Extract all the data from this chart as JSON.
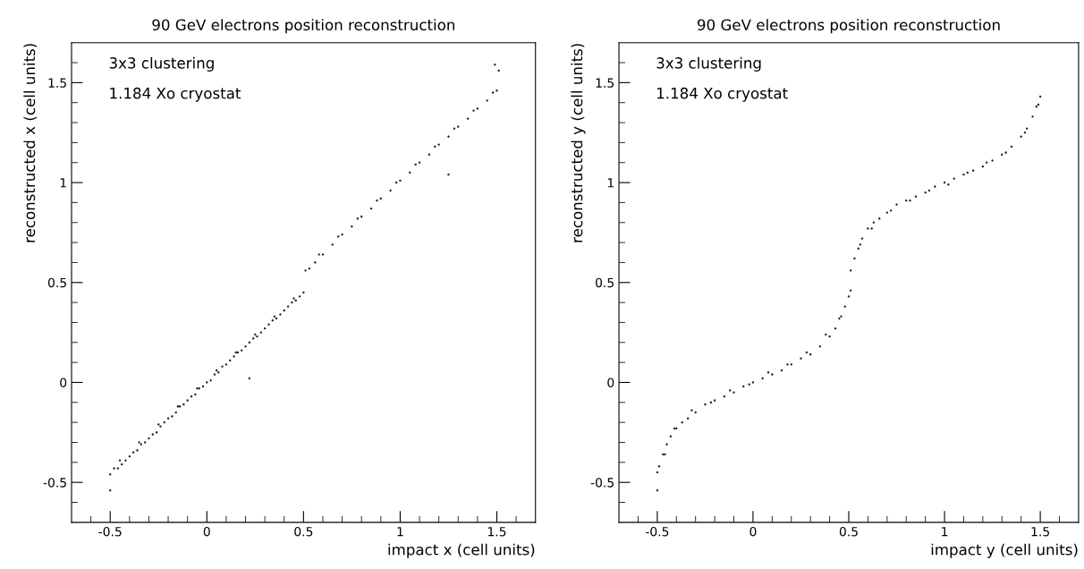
{
  "chart_data": [
    {
      "type": "scatter",
      "title": "90 GeV electrons position reconstruction",
      "xlabel": "impact x (cell units)",
      "ylabel": "reconstructed x (cell units)",
      "annotations": [
        "3x3 clustering",
        "1.184 Xo cryostat"
      ],
      "marker": "circle",
      "xlim": [
        -0.7,
        1.7
      ],
      "ylim": [
        -0.7,
        1.7
      ],
      "xticks": [
        {
          "value": -0.6,
          "label": null
        },
        -0.5,
        {
          "value": -0.4,
          "label": null
        },
        {
          "value": -0.3,
          "label": null
        },
        {
          "value": -0.2,
          "label": null
        },
        {
          "value": -0.1,
          "label": null
        },
        0,
        {
          "value": 0.1,
          "label": null
        },
        {
          "value": 0.2,
          "label": null
        },
        {
          "value": 0.3,
          "label": null
        },
        {
          "value": 0.4,
          "label": null
        },
        0.5,
        {
          "value": 0.6,
          "label": null
        },
        {
          "value": 0.7,
          "label": null
        },
        {
          "value": 0.8,
          "label": null
        },
        {
          "value": 0.9,
          "label": null
        },
        1,
        {
          "value": 1.1,
          "label": null
        },
        {
          "value": 1.2,
          "label": null
        },
        {
          "value": 1.3,
          "label": null
        },
        {
          "value": 1.4,
          "label": null
        },
        1.5,
        {
          "value": 1.6,
          "label": null
        }
      ],
      "yticks": [
        {
          "value": -0.6,
          "label": null
        },
        -0.5,
        {
          "value": -0.4,
          "label": null
        },
        {
          "value": -0.3,
          "label": null
        },
        {
          "value": -0.2,
          "label": null
        },
        {
          "value": -0.1,
          "label": null
        },
        0,
        {
          "value": 0.1,
          "label": null
        },
        {
          "value": 0.2,
          "label": null
        },
        {
          "value": 0.3,
          "label": null
        },
        {
          "value": 0.4,
          "label": null
        },
        0.5,
        {
          "value": 0.6,
          "label": null
        },
        {
          "value": 0.7,
          "label": null
        },
        {
          "value": 0.8,
          "label": null
        },
        {
          "value": 0.9,
          "label": null
        },
        1,
        {
          "value": 1.1,
          "label": null
        },
        {
          "value": 1.2,
          "label": null
        },
        {
          "value": 1.3,
          "label": null
        },
        {
          "value": 1.4,
          "label": null
        },
        1.5,
        {
          "value": 1.6,
          "label": null
        }
      ],
      "series": [
        {
          "color": "#222222",
          "x": [
            -0.5,
            -0.48,
            -0.46,
            -0.44,
            -0.42,
            -0.4,
            -0.38,
            -0.36,
            -0.34,
            -0.32,
            -0.3,
            -0.28,
            -0.26,
            -0.24,
            -0.22,
            -0.2,
            -0.18,
            -0.16,
            -0.14,
            -0.12,
            -0.1,
            -0.08,
            -0.06,
            -0.04,
            -0.02,
            0,
            0.02,
            0.04,
            0.06,
            0.08,
            0.1,
            0.12,
            0.14,
            0.16,
            0.18,
            0.2,
            0.22,
            0.24,
            0.26,
            0.28,
            0.3,
            0.32,
            0.34,
            0.36,
            0.38,
            0.4,
            0.42,
            0.44,
            0.46,
            0.48,
            0.5,
            -0.45,
            -0.35,
            -0.25,
            -0.15,
            -0.05,
            0.05,
            0.15,
            0.25,
            0.35,
            0.45,
            0.51,
            0.53,
            0.56,
            0.6,
            0.65,
            0.7,
            0.75,
            0.8,
            0.85,
            0.9,
            0.95,
            1.0,
            1.05,
            1.1,
            1.15,
            1.2,
            1.25,
            1.3,
            1.35,
            1.4,
            1.45,
            1.5,
            0.58,
            0.68,
            0.78,
            0.88,
            0.98,
            1.08,
            1.18,
            1.28,
            1.38,
            1.48,
            -0.5,
            0.22,
            1.25,
            1.49,
            1.51
          ],
          "values": [
            -0.46,
            -0.43,
            -0.43,
            -0.41,
            -0.39,
            -0.37,
            -0.35,
            -0.34,
            -0.31,
            -0.3,
            -0.28,
            -0.26,
            -0.25,
            -0.22,
            -0.2,
            -0.18,
            -0.17,
            -0.15,
            -0.12,
            -0.11,
            -0.09,
            -0.07,
            -0.06,
            -0.03,
            -0.02,
            0,
            0.01,
            0.04,
            0.05,
            0.08,
            0.09,
            0.11,
            0.13,
            0.15,
            0.16,
            0.18,
            0.2,
            0.22,
            0.23,
            0.25,
            0.27,
            0.29,
            0.31,
            0.32,
            0.34,
            0.36,
            0.38,
            0.4,
            0.41,
            0.43,
            0.45,
            -0.39,
            -0.3,
            -0.21,
            -0.12,
            -0.03,
            0.06,
            0.15,
            0.24,
            0.33,
            0.42,
            0.56,
            0.57,
            0.6,
            0.64,
            0.69,
            0.74,
            0.78,
            0.83,
            0.87,
            0.92,
            0.96,
            1.01,
            1.05,
            1.1,
            1.14,
            1.19,
            1.23,
            1.28,
            1.32,
            1.37,
            1.41,
            1.46,
            0.64,
            0.73,
            0.82,
            0.91,
            1.0,
            1.09,
            1.18,
            1.27,
            1.36,
            1.45,
            -0.54,
            0.02,
            1.04,
            1.59,
            1.56
          ]
        }
      ]
    },
    {
      "type": "scatter",
      "title": "90 GeV electrons position reconstruction",
      "xlabel": "impact y (cell units)",
      "ylabel": "reconstructed y (cell units)",
      "annotations": [
        "3x3 clustering",
        "1.184 Xo cryostat"
      ],
      "marker": "circle",
      "xlim": [
        -0.7,
        1.7
      ],
      "ylim": [
        -0.7,
        1.7
      ],
      "xticks": [
        {
          "value": -0.6,
          "label": null
        },
        -0.5,
        {
          "value": -0.4,
          "label": null
        },
        {
          "value": -0.3,
          "label": null
        },
        {
          "value": -0.2,
          "label": null
        },
        {
          "value": -0.1,
          "label": null
        },
        0,
        {
          "value": 0.1,
          "label": null
        },
        {
          "value": 0.2,
          "label": null
        },
        {
          "value": 0.3,
          "label": null
        },
        {
          "value": 0.4,
          "label": null
        },
        0.5,
        {
          "value": 0.6,
          "label": null
        },
        {
          "value": 0.7,
          "label": null
        },
        {
          "value": 0.8,
          "label": null
        },
        {
          "value": 0.9,
          "label": null
        },
        1,
        {
          "value": 1.1,
          "label": null
        },
        {
          "value": 1.2,
          "label": null
        },
        {
          "value": 1.3,
          "label": null
        },
        {
          "value": 1.4,
          "label": null
        },
        1.5,
        {
          "value": 1.6,
          "label": null
        }
      ],
      "yticks": [
        {
          "value": -0.6,
          "label": null
        },
        -0.5,
        {
          "value": -0.4,
          "label": null
        },
        {
          "value": -0.3,
          "label": null
        },
        {
          "value": -0.2,
          "label": null
        },
        {
          "value": -0.1,
          "label": null
        },
        0,
        {
          "value": 0.1,
          "label": null
        },
        {
          "value": 0.2,
          "label": null
        },
        {
          "value": 0.3,
          "label": null
        },
        {
          "value": 0.4,
          "label": null
        },
        0.5,
        {
          "value": 0.6,
          "label": null
        },
        {
          "value": 0.7,
          "label": null
        },
        {
          "value": 0.8,
          "label": null
        },
        {
          "value": 0.9,
          "label": null
        },
        1,
        {
          "value": 1.1,
          "label": null
        },
        {
          "value": 1.2,
          "label": null
        },
        {
          "value": 1.3,
          "label": null
        },
        {
          "value": 1.4,
          "label": null
        },
        1.5,
        {
          "value": 1.6,
          "label": null
        }
      ],
      "series": [
        {
          "color": "#222222",
          "x": [
            -0.5,
            -0.49,
            -0.47,
            -0.45,
            -0.43,
            -0.4,
            -0.37,
            -0.34,
            -0.3,
            -0.25,
            -0.2,
            -0.15,
            -0.1,
            -0.05,
            0,
            0.05,
            0.1,
            0.15,
            0.2,
            0.25,
            0.3,
            0.35,
            0.4,
            0.43,
            0.46,
            0.48,
            0.5,
            0.51,
            -0.46,
            -0.41,
            -0.32,
            -0.22,
            -0.12,
            -0.02,
            0.08,
            0.18,
            0.28,
            0.38,
            0.45,
            0.51,
            0.53,
            0.55,
            0.57,
            0.6,
            0.63,
            0.66,
            0.7,
            0.75,
            0.8,
            0.85,
            0.9,
            0.95,
            1.0,
            1.05,
            1.1,
            1.15,
            1.2,
            1.25,
            1.3,
            1.35,
            1.4,
            1.43,
            1.46,
            1.48,
            1.5,
            0.56,
            0.62,
            0.72,
            0.82,
            0.92,
            1.02,
            1.12,
            1.22,
            1.32,
            1.42,
            1.49,
            -0.5
          ],
          "values": [
            -0.45,
            -0.42,
            -0.36,
            -0.31,
            -0.27,
            -0.23,
            -0.2,
            -0.18,
            -0.15,
            -0.11,
            -0.09,
            -0.07,
            -0.05,
            -0.02,
            0,
            0.02,
            0.04,
            0.06,
            0.09,
            0.12,
            0.14,
            0.18,
            0.23,
            0.27,
            0.33,
            0.38,
            0.43,
            0.46,
            -0.36,
            -0.23,
            -0.14,
            -0.1,
            -0.04,
            -0.01,
            0.05,
            0.09,
            0.15,
            0.24,
            0.32,
            0.56,
            0.62,
            0.67,
            0.72,
            0.77,
            0.8,
            0.82,
            0.85,
            0.89,
            0.91,
            0.93,
            0.95,
            0.98,
            1.0,
            1.02,
            1.04,
            1.06,
            1.08,
            1.11,
            1.14,
            1.18,
            1.23,
            1.27,
            1.33,
            1.38,
            1.43,
            0.69,
            0.77,
            0.86,
            0.91,
            0.96,
            0.99,
            1.05,
            1.1,
            1.15,
            1.25,
            1.39,
            -0.54
          ]
        }
      ]
    }
  ]
}
